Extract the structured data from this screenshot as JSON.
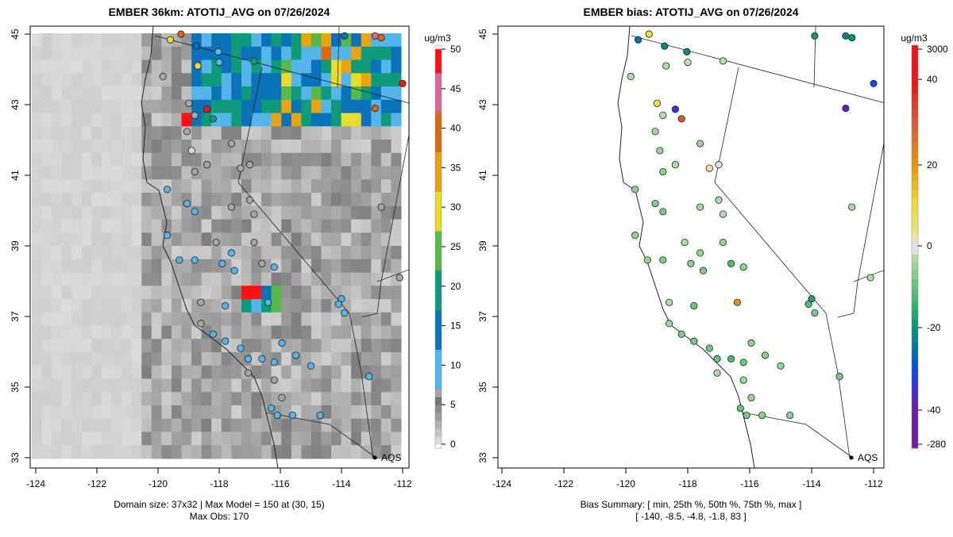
{
  "left": {
    "title": "EMBER 36km: ATOTIJ_AVG on 07/26/2024",
    "footer_line1": "Domain size: 37x32 | Max Model = 150 at (30, 15)",
    "footer_line2": "Max Obs: 170",
    "units": "ug/m3",
    "colorbar_ticks": [
      "0",
      "5",
      "10",
      "15",
      "20",
      "25",
      "30",
      "35",
      "40",
      "45",
      "50"
    ],
    "colorbar_values": [
      0,
      5,
      10,
      15,
      20,
      25,
      30,
      35,
      40,
      45,
      50
    ],
    "legend_label": "AQS"
  },
  "right": {
    "title": "EMBER bias: ATOTIJ_AVG on 07/26/2024",
    "footer_line1": "Bias Summary: [ min, 25th %, 50th %, 75th %, max ]",
    "footer_line2": "[ -140,   -8.5,   -4.8,   -1.8,   83 ]",
    "units": "ug/m3",
    "colorbar_ticks": [
      "3000",
      "40",
      "20",
      "0",
      "-20",
      "-40",
      "-280"
    ],
    "legend_label": "AQS"
  },
  "axes": {
    "x_ticks": [
      "-124",
      "-122",
      "-120",
      "-118",
      "-116",
      "-114",
      "-112"
    ],
    "x_values": [
      -124,
      -122,
      -120,
      -118,
      -116,
      -114,
      -112
    ],
    "y_ticks": [
      "45",
      "43",
      "41",
      "39",
      "37",
      "35",
      "33"
    ],
    "y_values": [
      45,
      43,
      41,
      39,
      37,
      35,
      33
    ]
  },
  "colors": {
    "obs_scale": [
      "#d9d9d9",
      "#a6a6a6",
      "#55b4ea",
      "#0a72b8",
      "#0f9a7a",
      "#59b84a",
      "#eadc2b",
      "#e9a412",
      "#d96a12",
      "#d8679a",
      "#ff1010"
    ],
    "bias_pos": "#e03020",
    "bias_neg": "#2040e0",
    "bias_zero": "#e0e0e0"
  },
  "chart_data": {
    "type": "scatter",
    "grid": "37x32",
    "stations": [
      {
        "lon": -119.6,
        "lat": 44.84,
        "obs": 28,
        "bias": -25
      },
      {
        "lon": -119.25,
        "lat": 45.0,
        "obs": 38,
        "bias": 10
      },
      {
        "lon": -118.75,
        "lat": 44.66,
        "obs": 15,
        "bias": -22
      },
      {
        "lon": -118.03,
        "lat": 44.5,
        "obs": 10,
        "bias": -22
      },
      {
        "lon": -116.86,
        "lat": 44.24,
        "obs": 22,
        "bias": -2
      },
      {
        "lon": -118.7,
        "lat": 44.1,
        "obs": 30,
        "bias": -3
      },
      {
        "lon": -119.84,
        "lat": 43.8,
        "obs": 4,
        "bias": -3
      },
      {
        "lon": -118.99,
        "lat": 43.04,
        "obs": 5,
        "bias": 8
      },
      {
        "lon": -118.4,
        "lat": 42.87,
        "obs": 50,
        "bias": -35
      },
      {
        "lon": -118.2,
        "lat": 42.6,
        "obs": 20,
        "bias": 30
      },
      {
        "lon": -118.8,
        "lat": 42.7,
        "obs": 4,
        "bias": -2
      },
      {
        "lon": -119.05,
        "lat": 42.24,
        "obs": 3,
        "bias": -4
      },
      {
        "lon": -118.9,
        "lat": 41.7,
        "obs": 2,
        "bias": -5
      },
      {
        "lon": -118.8,
        "lat": 41.1,
        "obs": 3,
        "bias": -6
      },
      {
        "lon": -118.4,
        "lat": 41.3,
        "obs": 4,
        "bias": -3
      },
      {
        "lon": -117.3,
        "lat": 41.2,
        "obs": 4,
        "bias": 2
      },
      {
        "lon": -117.0,
        "lat": 41.3,
        "obs": 3,
        "bias": 0
      },
      {
        "lon": -117.6,
        "lat": 41.9,
        "obs": 3,
        "bias": -5
      },
      {
        "lon": -119.7,
        "lat": 40.6,
        "obs": 12,
        "bias": -6
      },
      {
        "lon": -119.05,
        "lat": 40.2,
        "obs": 10,
        "bias": -7
      },
      {
        "lon": -118.8,
        "lat": 39.97,
        "obs": 11,
        "bias": -8
      },
      {
        "lon": -119.7,
        "lat": 39.3,
        "obs": 10,
        "bias": -6
      },
      {
        "lon": -119.3,
        "lat": 38.6,
        "obs": 9,
        "bias": -5
      },
      {
        "lon": -118.8,
        "lat": 38.6,
        "obs": 9,
        "bias": -7
      },
      {
        "lon": -118.1,
        "lat": 39.1,
        "obs": 5,
        "bias": -3
      },
      {
        "lon": -117.9,
        "lat": 38.5,
        "obs": 8,
        "bias": -6
      },
      {
        "lon": -117.6,
        "lat": 38.8,
        "obs": 9,
        "bias": -5
      },
      {
        "lon": -117.5,
        "lat": 38.3,
        "obs": 10,
        "bias": -7
      },
      {
        "lon": -116.86,
        "lat": 39.9,
        "obs": 5,
        "bias": -2
      },
      {
        "lon": -117.0,
        "lat": 40.3,
        "obs": 4,
        "bias": -3
      },
      {
        "lon": -117.6,
        "lat": 40.1,
        "obs": 3,
        "bias": -4
      },
      {
        "lon": -116.86,
        "lat": 39.1,
        "obs": 5,
        "bias": -5
      },
      {
        "lon": -116.6,
        "lat": 38.5,
        "obs": 4,
        "bias": -12
      },
      {
        "lon": -116.2,
        "lat": 38.4,
        "obs": 8,
        "bias": -6
      },
      {
        "lon": -117.8,
        "lat": 37.3,
        "obs": 11,
        "bias": -9
      },
      {
        "lon": -116.4,
        "lat": 37.4,
        "obs": 9,
        "bias": 20
      },
      {
        "lon": -118.6,
        "lat": 37.4,
        "obs": 4,
        "bias": -3
      },
      {
        "lon": -118.6,
        "lat": 36.8,
        "obs": 5,
        "bias": -4
      },
      {
        "lon": -118.2,
        "lat": 36.5,
        "obs": 11,
        "bias": -7
      },
      {
        "lon": -117.8,
        "lat": 36.3,
        "obs": 10,
        "bias": -8
      },
      {
        "lon": -117.3,
        "lat": 36.1,
        "obs": 10,
        "bias": -9
      },
      {
        "lon": -117.05,
        "lat": 35.8,
        "obs": 12,
        "bias": -10
      },
      {
        "lon": -116.6,
        "lat": 35.8,
        "obs": 11,
        "bias": -12
      },
      {
        "lon": -116.2,
        "lat": 35.7,
        "obs": 12,
        "bias": -9
      },
      {
        "lon": -115.95,
        "lat": 36.25,
        "obs": 9,
        "bias": -6
      },
      {
        "lon": -115.5,
        "lat": 35.9,
        "obs": 10,
        "bias": -7
      },
      {
        "lon": -115.0,
        "lat": 35.6,
        "obs": 8,
        "bias": -5
      },
      {
        "lon": -117.05,
        "lat": 35.4,
        "obs": 4,
        "bias": -3
      },
      {
        "lon": -116.2,
        "lat": 35.2,
        "obs": 4,
        "bias": -4
      },
      {
        "lon": -115.95,
        "lat": 34.7,
        "obs": 6,
        "bias": -5
      },
      {
        "lon": -116.3,
        "lat": 34.4,
        "obs": 12,
        "bias": -10
      },
      {
        "lon": -116.1,
        "lat": 34.2,
        "obs": 10,
        "bias": -8
      },
      {
        "lon": -115.6,
        "lat": 34.2,
        "obs": 9,
        "bias": -6
      },
      {
        "lon": -114.7,
        "lat": 34.2,
        "obs": 8,
        "bias": -6
      },
      {
        "lon": -113.1,
        "lat": 35.3,
        "obs": 10,
        "bias": -8
      },
      {
        "lon": -112.7,
        "lat": 40.1,
        "obs": 3,
        "bias": -3
      },
      {
        "lon": -112.1,
        "lat": 38.1,
        "obs": 3,
        "bias": -3
      },
      {
        "lon": -114.0,
        "lat": 37.5,
        "obs": 12,
        "bias": -18
      },
      {
        "lon": -114.1,
        "lat": 37.35,
        "obs": 10,
        "bias": -12
      },
      {
        "lon": -113.9,
        "lat": 37.1,
        "obs": 8,
        "bias": -8
      },
      {
        "lon": -118.0,
        "lat": 44.2,
        "obs": 10,
        "bias": -2
      },
      {
        "lon": -113.9,
        "lat": 44.95,
        "obs": 14,
        "bias": -20
      },
      {
        "lon": -112.9,
        "lat": 44.95,
        "obs": 45,
        "bias": -22
      },
      {
        "lon": -112.7,
        "lat": 44.9,
        "obs": 40,
        "bias": -20
      },
      {
        "lon": -112.0,
        "lat": 43.6,
        "obs": 50,
        "bias": -30
      },
      {
        "lon": -112.9,
        "lat": 42.9,
        "obs": 40,
        "bias": -38
      }
    ]
  }
}
